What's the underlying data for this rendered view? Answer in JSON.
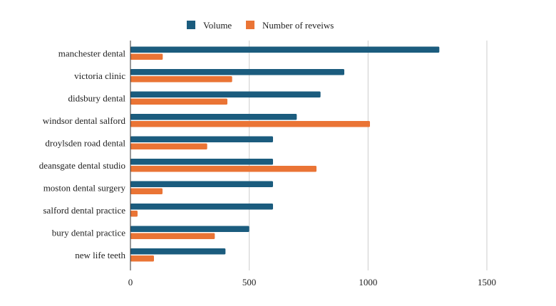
{
  "chart_data": {
    "type": "bar",
    "orientation": "horizontal",
    "title": "",
    "xlabel": "",
    "ylabel": "",
    "xlim": [
      0,
      1800
    ],
    "xticks": [
      0,
      500,
      1000,
      1500
    ],
    "grid": true,
    "legend_position": "top",
    "categories": [
      "manchester dental",
      "victoria clinic",
      "didsbury dental",
      "windsor dental salford",
      "droylsden road dental",
      "deansgate dental studio",
      "moston dental surgery",
      "salford dental practice",
      "bury dental practice",
      "new life teeth"
    ],
    "series": [
      {
        "name": "Volume",
        "color": "#1b5c7e",
        "values": [
          1300,
          900,
          800,
          700,
          600,
          600,
          600,
          600,
          500,
          400
        ]
      },
      {
        "name": "Number of reveiws",
        "color": "#ea7435",
        "values": [
          136,
          428,
          408,
          1008,
          323,
          783,
          135,
          30,
          355,
          99
        ]
      }
    ]
  }
}
